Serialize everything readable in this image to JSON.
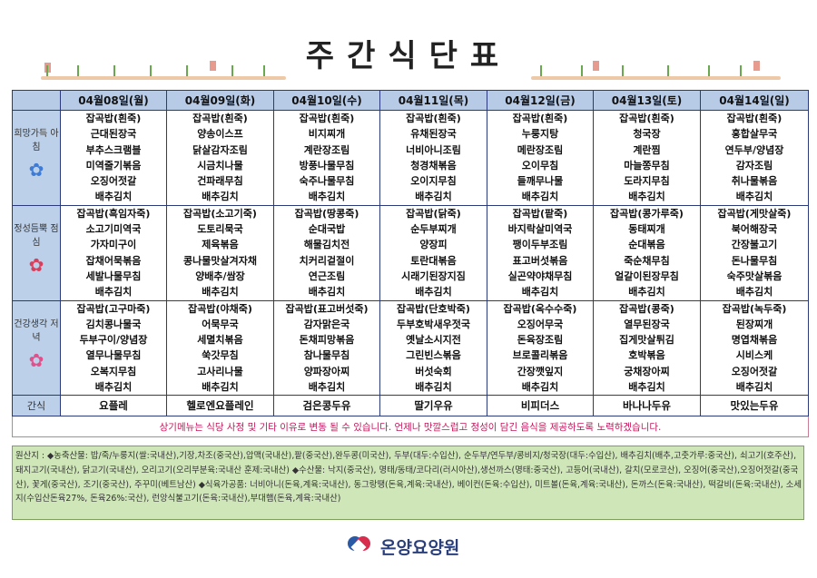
{
  "title": "주간식단표",
  "days": [
    "04월08일(월)",
    "04월09일(화)",
    "04월10일(수)",
    "04월11일(목)",
    "04월12일(금)",
    "04월13일(토)",
    "04월14일(일)"
  ],
  "meals": [
    {
      "label": "희망가득 아침",
      "days": [
        [
          "잡곡밥(흰죽)",
          "근대된장국",
          "부추스크램블",
          "미역줄기볶음",
          "오징어젓갈",
          "배추김치"
        ],
        [
          "잡곡밥(흰죽)",
          "양송이스프",
          "닭살감자조림",
          "시금치나물",
          "건파래무침",
          "배추김치"
        ],
        [
          "잡곡밥(흰죽)",
          "비지찌개",
          "계란장조림",
          "방풍나물무침",
          "숙주나물무침",
          "배추김치"
        ],
        [
          "잡곡밥(흰죽)",
          "유채된장국",
          "너비아니조림",
          "청경채볶음",
          "오이지무침",
          "배추김치"
        ],
        [
          "잡곡밥(흰죽)",
          "누룽지탕",
          "메란장조림",
          "오이무침",
          "들깨무나물",
          "배추김치"
        ],
        [
          "잡곡밥(흰죽)",
          "청국장",
          "계란찜",
          "마늘쫑무침",
          "도라지무침",
          "배추김치"
        ],
        [
          "잡곡밥(흰죽)",
          "홍합살무국",
          "연두부/양념장",
          "감자조림",
          "취나물볶음",
          "배추김치"
        ]
      ]
    },
    {
      "label": "정성듬뿍 점심",
      "days": [
        [
          "잡곡밥(흑임자죽)",
          "소고기미역국",
          "가자미구이",
          "잡채어묵볶음",
          "세발나물무침",
          "배추김치"
        ],
        [
          "잡곡밥(소고기죽)",
          "도토리묵국",
          "제육볶음",
          "콩나물맛살겨자채",
          "양배추/쌈장",
          "배추김치"
        ],
        [
          "잡곡밥(땅콩죽)",
          "순대국밥",
          "해물김치전",
          "치커리겉절이",
          "연근조림",
          "배추김치"
        ],
        [
          "잡곡밥(닭죽)",
          "순두부찌개",
          "양장피",
          "토란대볶음",
          "시래기된장지짐",
          "배추김치"
        ],
        [
          "잡곡밥(팥죽)",
          "바지락살미역국",
          "팽이두부조림",
          "표고버섯볶음",
          "실곤약야채무침",
          "배추김치"
        ],
        [
          "잡곡밥(콩가루죽)",
          "동태찌개",
          "순대볶음",
          "죽순채무침",
          "얼갈이된장무침",
          "배추김치"
        ],
        [
          "잡곡밥(게맛살죽)",
          "북어해장국",
          "간장불고기",
          "돈나물무침",
          "숙주맛살볶음",
          "배추김치"
        ]
      ]
    },
    {
      "label": "건강생각 저녁",
      "days": [
        [
          "잡곡밥(고구마죽)",
          "김치콩나물국",
          "두부구이/양념장",
          "열무나물무침",
          "오복지무침",
          "배추김치"
        ],
        [
          "잡곡밥(야채죽)",
          "어묵무국",
          "세멸치볶음",
          "쑥갓무침",
          "고사리나물",
          "배추김치"
        ],
        [
          "잡곡밥(표고버섯죽)",
          "감자맑은국",
          "돈채피망볶음",
          "참나물무침",
          "양파장아찌",
          "배추김치"
        ],
        [
          "잡곡밥(단호박죽)",
          "두부호박새우젓국",
          "옛날소시지전",
          "그린빈스볶음",
          "버섯숙회",
          "배추김치"
        ],
        [
          "잡곡밥(옥수수죽)",
          "오징어무국",
          "돈육장조림",
          "브로콜리볶음",
          "간장깻잎지",
          "배추김치"
        ],
        [
          "잡곡밥(콩죽)",
          "열무된장국",
          "집게맛살튀김",
          "호박볶음",
          "궁채장아찌",
          "배추김치"
        ],
        [
          "잡곡밥(녹두죽)",
          "된장찌개",
          "명엽채볶음",
          "시비스케",
          "오징어젓갈",
          "배추김치"
        ]
      ]
    }
  ],
  "snack": {
    "label": "간식",
    "items": [
      "요플레",
      "헬로엔요플레인",
      "검은콩두유",
      "딸기우유",
      "비피더스",
      "바나나두유",
      "맛있는두유"
    ]
  },
  "notice": "상기메뉴는 식당 사정 및 기타 이유로 변동 될 수 있습니다. 언제나 맛깔스럽고 정성이 담긴 음식을 제공하도록 노력하겠습니다.",
  "origin": "원산지 : ◆농축산물: 밥/죽/누룽지(쌀:국내산),기장,차조(중국산),압맥(국내산),팥(중국산),완두콩(미국산), 두부(대두:수입산), 순두부/연두부/콩비지/청국장(대두:수입산), 배추김치(배추,고춧가루:중국산), 쇠고기(호주산), 돼지고기(국내산), 닭고기(국내산), 오리고기(오리부분육:국내산 훈제:국내산) ◆수산물: 낙지(중국산), 명태/동태/코다리(러시아산),생선까스(명태:중국산), 고등어(국내산), 갈치(모로코산), 오징어(중국산),오징어젓갈(중국산), 꽃게(중국산), 조기(중국산), 주꾸미(베트남산) ◆식육가공품: 너비아니(돈육,계육:국내산), 동그랑땡(돈육,계육:국내산), 베이컨(돈육:수입산), 미트볼(돈육,계육:국내산), 돈까스(돈육:국내산), 떡갈비(돈육:국내산), 소세지(수입산돈육27%, 돈육26%:국산), 런앙식불고기(돈육:국내산),부대햄(돈육,계육:국내산)",
  "brand": "온양요양원",
  "colors": {
    "header": "#b8cbe6",
    "notice_text": "#c2185b",
    "origin_bg": "#cfe6b9",
    "brand": "#2a3f7a"
  }
}
